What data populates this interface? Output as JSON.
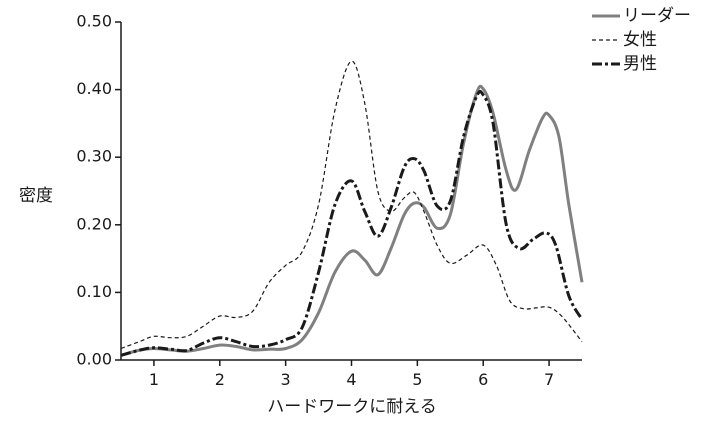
{
  "chart_data": {
    "type": "line",
    "xlabel": "ハードワークに耐える",
    "ylabel": "密度",
    "xlim": [
      0.5,
      7.5
    ],
    "ylim": [
      0,
      0.5
    ],
    "x_ticks": [
      "1",
      "2",
      "3",
      "4",
      "5",
      "6",
      "7"
    ],
    "y_ticks": [
      "0.00",
      "0.10",
      "0.20",
      "0.30",
      "0.40",
      "0.50"
    ],
    "grid": false,
    "legend_position": "top-right, outside plot",
    "series": [
      {
        "name": "リーダー",
        "style": "solid",
        "color": "#808080",
        "points": [
          [
            0.5,
            0.007
          ],
          [
            0.8,
            0.015
          ],
          [
            1.0,
            0.017
          ],
          [
            1.25,
            0.015
          ],
          [
            1.5,
            0.013
          ],
          [
            1.75,
            0.017
          ],
          [
            2.0,
            0.022
          ],
          [
            2.25,
            0.02
          ],
          [
            2.5,
            0.015
          ],
          [
            2.75,
            0.016
          ],
          [
            3.0,
            0.017
          ],
          [
            3.25,
            0.03
          ],
          [
            3.5,
            0.07
          ],
          [
            3.75,
            0.13
          ],
          [
            4.0,
            0.161
          ],
          [
            4.2,
            0.148
          ],
          [
            4.4,
            0.126
          ],
          [
            4.6,
            0.165
          ],
          [
            4.8,
            0.215
          ],
          [
            4.95,
            0.232
          ],
          [
            5.1,
            0.226
          ],
          [
            5.3,
            0.195
          ],
          [
            5.5,
            0.215
          ],
          [
            5.7,
            0.32
          ],
          [
            5.9,
            0.395
          ],
          [
            6.0,
            0.401
          ],
          [
            6.15,
            0.365
          ],
          [
            6.35,
            0.28
          ],
          [
            6.5,
            0.252
          ],
          [
            6.7,
            0.31
          ],
          [
            6.9,
            0.358
          ],
          [
            7.0,
            0.362
          ],
          [
            7.15,
            0.33
          ],
          [
            7.3,
            0.23
          ],
          [
            7.5,
            0.115
          ]
        ]
      },
      {
        "name": "女性",
        "style": "dashed",
        "color": "#1a1a1a",
        "points": [
          [
            0.5,
            0.017
          ],
          [
            0.8,
            0.028
          ],
          [
            1.0,
            0.035
          ],
          [
            1.25,
            0.033
          ],
          [
            1.5,
            0.035
          ],
          [
            1.75,
            0.05
          ],
          [
            2.0,
            0.065
          ],
          [
            2.25,
            0.063
          ],
          [
            2.5,
            0.072
          ],
          [
            2.75,
            0.115
          ],
          [
            3.0,
            0.14
          ],
          [
            3.25,
            0.16
          ],
          [
            3.5,
            0.23
          ],
          [
            3.75,
            0.37
          ],
          [
            4.0,
            0.442
          ],
          [
            4.2,
            0.38
          ],
          [
            4.4,
            0.25
          ],
          [
            4.6,
            0.22
          ],
          [
            4.8,
            0.24
          ],
          [
            4.95,
            0.248
          ],
          [
            5.1,
            0.22
          ],
          [
            5.3,
            0.17
          ],
          [
            5.5,
            0.143
          ],
          [
            5.75,
            0.155
          ],
          [
            6.0,
            0.17
          ],
          [
            6.2,
            0.14
          ],
          [
            6.4,
            0.088
          ],
          [
            6.6,
            0.076
          ],
          [
            6.8,
            0.077
          ],
          [
            7.0,
            0.078
          ],
          [
            7.2,
            0.064
          ],
          [
            7.5,
            0.027
          ]
        ]
      },
      {
        "name": "男性",
        "style": "dashdot",
        "color": "#1a1a1a",
        "points": [
          [
            0.5,
            0.007
          ],
          [
            0.8,
            0.015
          ],
          [
            1.0,
            0.018
          ],
          [
            1.25,
            0.016
          ],
          [
            1.5,
            0.014
          ],
          [
            1.75,
            0.025
          ],
          [
            2.0,
            0.033
          ],
          [
            2.25,
            0.027
          ],
          [
            2.5,
            0.02
          ],
          [
            2.75,
            0.022
          ],
          [
            3.0,
            0.03
          ],
          [
            3.25,
            0.048
          ],
          [
            3.5,
            0.13
          ],
          [
            3.75,
            0.23
          ],
          [
            4.0,
            0.265
          ],
          [
            4.2,
            0.22
          ],
          [
            4.4,
            0.183
          ],
          [
            4.6,
            0.225
          ],
          [
            4.8,
            0.285
          ],
          [
            4.95,
            0.298
          ],
          [
            5.1,
            0.28
          ],
          [
            5.3,
            0.228
          ],
          [
            5.5,
            0.235
          ],
          [
            5.7,
            0.33
          ],
          [
            5.9,
            0.39
          ],
          [
            6.0,
            0.392
          ],
          [
            6.15,
            0.35
          ],
          [
            6.35,
            0.2
          ],
          [
            6.55,
            0.165
          ],
          [
            6.75,
            0.178
          ],
          [
            6.95,
            0.188
          ],
          [
            7.1,
            0.17
          ],
          [
            7.3,
            0.095
          ],
          [
            7.5,
            0.06
          ]
        ]
      }
    ]
  }
}
